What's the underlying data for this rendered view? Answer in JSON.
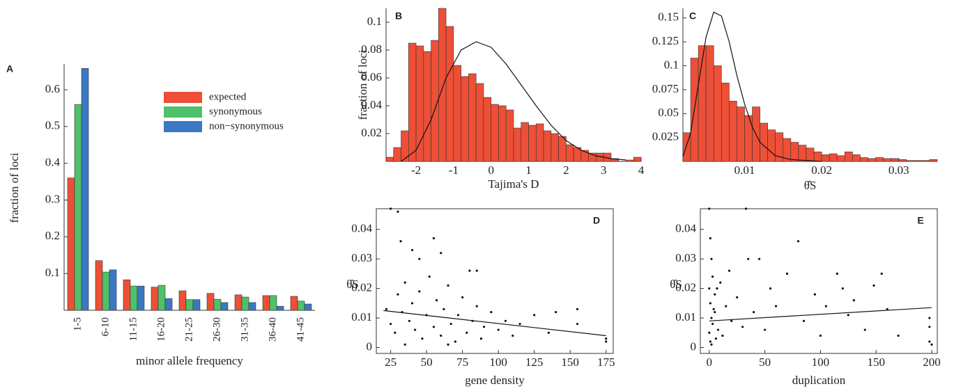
{
  "chart_data": [
    {
      "type": "bar",
      "label": "A",
      "ylabel": "fraction of loci",
      "xlabel": "minor allele frequency",
      "categories": [
        "1-5",
        "6-10",
        "11-15",
        "16-20",
        "21-25",
        "26-30",
        "31-35",
        "36-40",
        "41-45"
      ],
      "series": [
        {
          "name": "expected",
          "color": "#ee4f37",
          "values": [
            0.36,
            0.135,
            0.083,
            0.063,
            0.053,
            0.046,
            0.042,
            0.04,
            0.038
          ]
        },
        {
          "name": "synonymous",
          "color": "#4fc16b",
          "values": [
            0.56,
            0.104,
            0.066,
            0.068,
            0.029,
            0.03,
            0.036,
            0.04,
            0.025
          ]
        },
        {
          "name": "non−synonymous",
          "color": "#3b78c4",
          "values": [
            0.658,
            0.11,
            0.066,
            0.032,
            0.029,
            0.021,
            0.021,
            0.011,
            0.017
          ]
        }
      ],
      "ylim": [
        0,
        0.67
      ],
      "yticks": [
        0.1,
        0.2,
        0.3,
        0.4,
        0.5,
        0.6
      ]
    },
    {
      "type": "histogram",
      "label": "B",
      "ylabel": "fraction of loci",
      "xlabel": "Tajima's D",
      "color": "#ee4f37",
      "bins": [
        -2.8,
        -2.6,
        -2.4,
        -2.2,
        -2.0,
        -1.8,
        -1.6,
        -1.4,
        -1.2,
        -1.0,
        -0.8,
        -0.6,
        -0.4,
        -0.2,
        0,
        0.2,
        0.4,
        0.6,
        0.8,
        1.0,
        1.2,
        1.4,
        1.6,
        1.8,
        2.0,
        2.2,
        2.4,
        2.6,
        2.8,
        3.0,
        3.2,
        3.4,
        3.6,
        3.8,
        4.0
      ],
      "values": [
        0.003,
        0.01,
        0.022,
        0.085,
        0.083,
        0.079,
        0.087,
        0.11,
        0.097,
        0.069,
        0.061,
        0.063,
        0.056,
        0.046,
        0.041,
        0.04,
        0.037,
        0.024,
        0.028,
        0.026,
        0.027,
        0.022,
        0.02,
        0.018,
        0.012,
        0.01,
        0.008,
        0.006,
        0.006,
        0.006,
        0.002,
        0,
        0.001,
        0.003
      ],
      "line": {
        "x": [
          -2.4,
          -2.0,
          -1.6,
          -1.2,
          -0.8,
          -0.4,
          0,
          0.4,
          0.8,
          1.2,
          1.6,
          2.0,
          2.4,
          2.8,
          3.2,
          3.6
        ],
        "y": [
          0,
          0.008,
          0.03,
          0.06,
          0.08,
          0.086,
          0.082,
          0.07,
          0.055,
          0.04,
          0.026,
          0.015,
          0.008,
          0.004,
          0.002,
          0.001
        ]
      },
      "xlim": [
        -2.8,
        4
      ],
      "xticks": [
        -2,
        -1,
        0,
        1,
        2,
        3,
        4
      ],
      "ylim": [
        0,
        0.11
      ],
      "yticks": [
        0.02,
        0.04,
        0.06,
        0.08,
        0.1
      ]
    },
    {
      "type": "histogram",
      "label": "C",
      "xlabel": "θ̂S",
      "color": "#ee4f37",
      "bins": [
        0.002,
        0.003,
        0.004,
        0.005,
        0.006,
        0.007,
        0.008,
        0.009,
        0.01,
        0.011,
        0.012,
        0.013,
        0.014,
        0.015,
        0.016,
        0.017,
        0.018,
        0.019,
        0.02,
        0.021,
        0.022,
        0.023,
        0.024,
        0.025,
        0.026,
        0.027,
        0.028,
        0.029,
        0.03,
        0.031,
        0.032,
        0.033,
        0.034,
        0.035
      ],
      "values": [
        0.03,
        0.108,
        0.121,
        0.121,
        0.1,
        0.082,
        0.063,
        0.057,
        0.048,
        0.057,
        0.04,
        0.033,
        0.03,
        0.024,
        0.02,
        0.017,
        0.014,
        0.01,
        0.007,
        0.008,
        0.006,
        0.01,
        0.007,
        0.004,
        0.003,
        0.004,
        0.003,
        0.003,
        0.002,
        0.001,
        0.001,
        0.001,
        0.002
      ],
      "line": {
        "x": [
          0.002,
          0.003,
          0.004,
          0.005,
          0.006,
          0.007,
          0.008,
          0.009,
          0.01,
          0.011,
          0.012,
          0.014,
          0.016,
          0.02
        ],
        "y": [
          0.005,
          0.03,
          0.08,
          0.13,
          0.156,
          0.152,
          0.125,
          0.09,
          0.06,
          0.036,
          0.02,
          0.006,
          0.002,
          0
        ]
      },
      "xlim": [
        0.002,
        0.035
      ],
      "xticks": [
        0.01,
        0.02,
        0.03
      ],
      "ylim": [
        0,
        0.16
      ],
      "yticks": [
        0.025,
        0.05,
        0.075,
        0.1,
        0.125,
        0.15
      ]
    },
    {
      "type": "scatter",
      "label": "D",
      "ylabel": "θ̂S",
      "xlabel": "gene density",
      "color": "#111111",
      "x": [
        25,
        30,
        32,
        40,
        45,
        55,
        60,
        80,
        85,
        22,
        25,
        28,
        30,
        33,
        35,
        38,
        40,
        42,
        45,
        47,
        50,
        52,
        55,
        57,
        60,
        62,
        65,
        67,
        70,
        72,
        75,
        78,
        82,
        85,
        88,
        90,
        95,
        100,
        105,
        110,
        115,
        125,
        135,
        140,
        155,
        155,
        175,
        175,
        35,
        65
      ],
      "y": [
        0.047,
        0.046,
        0.036,
        0.033,
        0.03,
        0.037,
        0.032,
        0.026,
        0.026,
        0.013,
        0.008,
        0.005,
        0.018,
        0.012,
        0.022,
        0.009,
        0.015,
        0.006,
        0.019,
        0.003,
        0.011,
        0.024,
        0.007,
        0.016,
        0.004,
        0.013,
        0.021,
        0.008,
        0.002,
        0.011,
        0.017,
        0.005,
        0.009,
        0.014,
        0.003,
        0.007,
        0.012,
        0.006,
        0.009,
        0.004,
        0.008,
        0.011,
        0.005,
        0.012,
        0.013,
        0.008,
        0.002,
        0.003,
        0.001,
        0.001
      ],
      "fit": {
        "x": [
          20,
          175
        ],
        "y": [
          0.0125,
          0.004
        ]
      },
      "xlim": [
        15,
        180
      ],
      "xticks": [
        25,
        50,
        75,
        100,
        125,
        150,
        175
      ],
      "ylim": [
        -0.002,
        0.047
      ],
      "yticks": [
        0,
        0.01,
        0.02,
        0.03,
        0.04
      ]
    },
    {
      "type": "scatter",
      "label": "E",
      "ylabel": "θ̂S",
      "xlabel": "duplication",
      "color": "#111111",
      "x": [
        0,
        1,
        2,
        3,
        0,
        1,
        2,
        0,
        1,
        3,
        5,
        5,
        8,
        10,
        12,
        15,
        18,
        20,
        25,
        30,
        33,
        35,
        40,
        45,
        50,
        55,
        60,
        70,
        80,
        85,
        95,
        100,
        105,
        115,
        120,
        125,
        130,
        140,
        148,
        155,
        160,
        170,
        198,
        198,
        198,
        200,
        2,
        4,
        6,
        7
      ],
      "y": [
        0.047,
        0.037,
        0.03,
        0.024,
        0.02,
        0.015,
        0.01,
        0.005,
        0.002,
        0.008,
        0.012,
        0.018,
        0.006,
        0.022,
        0.004,
        0.014,
        0.026,
        0.009,
        0.017,
        0.007,
        0.047,
        0.03,
        0.012,
        0.03,
        0.006,
        0.02,
        0.014,
        0.025,
        0.036,
        0.009,
        0.018,
        0.004,
        0.014,
        0.025,
        0.02,
        0.011,
        0.016,
        0.006,
        0.021,
        0.025,
        0.013,
        0.004,
        0.01,
        0.007,
        0.002,
        0.001,
        0.001,
        0.013,
        0.003,
        0.02
      ],
      "fit": {
        "x": [
          0,
          200
        ],
        "y": [
          0.009,
          0.0135
        ]
      },
      "xlim": [
        -8,
        205
      ],
      "xticks": [
        0,
        50,
        100,
        150,
        200
      ],
      "ylim": [
        -0.002,
        0.047
      ],
      "yticks": [
        0,
        0.01,
        0.02,
        0.03,
        0.04
      ]
    }
  ]
}
